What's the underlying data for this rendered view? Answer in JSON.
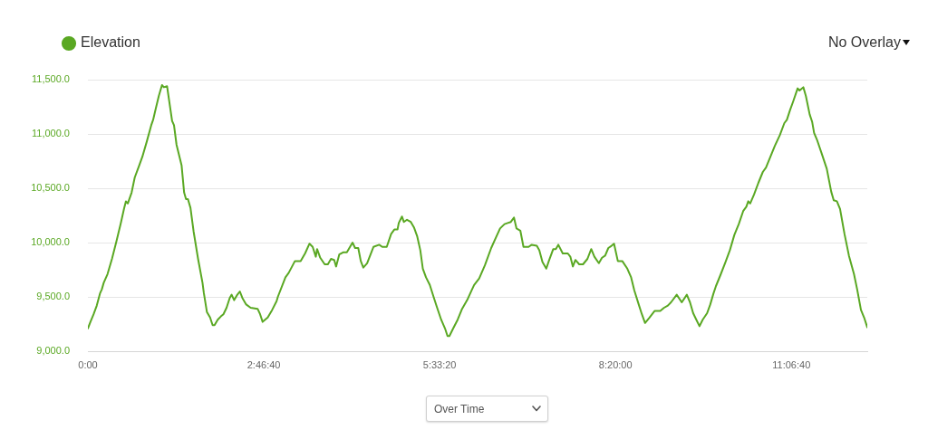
{
  "chart_data": {
    "type": "line",
    "x": [
      0,
      0.04,
      0.09,
      0.14,
      0.19,
      0.22,
      0.25,
      0.31,
      0.38,
      0.45,
      0.52,
      0.57,
      0.6,
      0.63,
      0.69,
      0.74,
      0.81,
      0.86,
      0.93,
      1.0,
      1.03,
      1.07,
      1.12,
      1.17,
      1.2,
      1.25,
      1.28,
      1.33,
      1.36,
      1.4,
      1.48,
      1.52,
      1.55,
      1.58,
      1.62,
      1.67,
      1.74,
      1.81,
      1.83,
      1.88,
      1.93,
      1.97,
      2.0,
      2.05,
      2.1,
      2.14,
      2.19,
      2.24,
      2.27,
      2.31,
      2.36,
      2.4,
      2.44,
      2.5,
      2.57,
      2.68,
      2.72,
      2.76,
      2.84,
      2.91,
      2.98,
      3.0,
      3.12,
      3.17,
      3.27,
      3.36,
      3.43,
      3.5,
      3.55,
      3.6,
      3.62,
      3.67,
      3.74,
      3.79,
      3.84,
      3.89,
      3.92,
      3.97,
      4.03,
      4.09,
      4.14,
      4.18,
      4.22,
      4.27,
      4.31,
      4.35,
      4.41,
      4.51,
      4.6,
      4.65,
      4.72,
      4.79,
      4.84,
      4.89,
      4.91,
      4.96,
      4.99,
      5.04,
      5.1,
      5.15,
      5.2,
      5.25,
      5.29,
      5.34,
      5.4,
      5.46,
      5.51,
      5.58,
      5.64,
      5.68,
      5.71,
      5.77,
      5.84,
      5.91,
      5.99,
      6.06,
      6.1,
      6.18,
      6.27,
      6.37,
      6.44,
      6.51,
      6.58,
      6.63,
      6.68,
      6.73,
      6.77,
      6.83,
      6.88,
      6.96,
      7.01,
      7.09,
      7.13,
      7.18,
      7.24,
      7.28,
      7.35,
      7.39,
      7.43,
      7.5,
      7.58,
      7.62,
      7.66,
      7.7,
      7.76,
      7.82,
      7.89,
      7.95,
      8.0,
      8.07,
      8.12,
      8.17,
      8.22,
      8.27,
      8.31,
      8.37,
      8.44,
      8.52,
      8.58,
      8.63,
      8.7,
      8.75,
      8.8,
      8.87,
      8.95,
      9.04,
      9.1,
      9.16,
      9.21,
      9.3,
      9.38,
      9.46,
      9.51,
      9.56,
      9.61,
      9.66,
      9.71,
      9.78,
      9.83,
      9.88,
      9.92,
      9.99,
      10.07,
      10.14,
      10.21,
      10.28,
      10.35,
      10.4,
      10.43,
      10.46,
      10.52,
      10.59,
      10.66,
      10.71,
      10.78,
      10.85,
      10.93,
      11.0,
      11.04,
      11.09,
      11.14,
      11.21,
      11.24,
      11.3,
      11.34,
      11.4,
      11.44,
      11.47,
      11.52,
      11.59,
      11.67,
      11.74,
      11.78,
      11.83,
      11.88,
      11.95,
      12.02,
      12.1,
      12.15,
      12.21,
      12.26,
      12.31
    ],
    "series": [
      {
        "name": "Elevation",
        "color": "#5aa823",
        "values": [
          9210,
          9270,
          9340,
          9420,
          9530,
          9570,
          9630,
          9710,
          9850,
          10010,
          10180,
          10310,
          10380,
          10360,
          10460,
          10600,
          10710,
          10790,
          10930,
          11080,
          11130,
          11230,
          11350,
          11450,
          11430,
          11440,
          11320,
          11120,
          11080,
          10900,
          10710,
          10460,
          10400,
          10400,
          10320,
          10100,
          9850,
          9630,
          9540,
          9360,
          9310,
          9240,
          9240,
          9290,
          9320,
          9340,
          9400,
          9490,
          9520,
          9470,
          9520,
          9550,
          9490,
          9430,
          9400,
          9390,
          9340,
          9270,
          9310,
          9380,
          9460,
          9500,
          9680,
          9720,
          9830,
          9830,
          9900,
          9990,
          9960,
          9870,
          9940,
          9860,
          9800,
          9800,
          9850,
          9840,
          9780,
          9890,
          9910,
          9910,
          9960,
          10000,
          9950,
          9950,
          9830,
          9770,
          9810,
          9960,
          9980,
          9960,
          9960,
          10080,
          10120,
          10120,
          10180,
          10240,
          10190,
          10210,
          10190,
          10140,
          10060,
          9930,
          9760,
          9680,
          9610,
          9500,
          9410,
          9290,
          9210,
          9140,
          9140,
          9210,
          9290,
          9390,
          9470,
          9560,
          9610,
          9670,
          9790,
          9950,
          10040,
          10130,
          10170,
          10180,
          10190,
          10230,
          10130,
          10110,
          9960,
          9960,
          9980,
          9970,
          9930,
          9820,
          9760,
          9830,
          9940,
          9940,
          9980,
          9900,
          9900,
          9870,
          9780,
          9840,
          9800,
          9800,
          9850,
          9940,
          9870,
          9810,
          9860,
          9880,
          9950,
          9970,
          9990,
          9830,
          9830,
          9760,
          9680,
          9560,
          9430,
          9340,
          9260,
          9310,
          9370,
          9370,
          9400,
          9420,
          9450,
          9520,
          9450,
          9520,
          9450,
          9350,
          9290,
          9230,
          9290,
          9350,
          9430,
          9530,
          9600,
          9700,
          9820,
          9930,
          10070,
          10170,
          10290,
          10330,
          10380,
          10360,
          10440,
          10550,
          10650,
          10690,
          10790,
          10890,
          10990,
          11100,
          11130,
          11220,
          11300,
          11420,
          11400,
          11430,
          11350,
          11180,
          11110,
          11010,
          10940,
          10820,
          10680,
          10470,
          10390,
          10380,
          10310,
          10080,
          9880,
          9710,
          9570,
          9380,
          9310,
          9220
        ]
      }
    ],
    "xlim": [
      0,
      12.31
    ],
    "xticks": [
      {
        "value": 0,
        "label": "0:00"
      },
      {
        "value": 2.777778,
        "label": "2:46:40"
      },
      {
        "value": 5.555556,
        "label": "5:33:20"
      },
      {
        "value": 8.333333,
        "label": "8:20:00"
      },
      {
        "value": 11.111111,
        "label": "11:06:40"
      }
    ],
    "ylim": [
      9000,
      11500
    ],
    "yticks": [
      {
        "value": 9000,
        "label": "9,000.0"
      },
      {
        "value": 9500,
        "label": "9,500.0"
      },
      {
        "value": 10000,
        "label": "10,000.0"
      },
      {
        "value": 10500,
        "label": "10,500.0"
      },
      {
        "value": 11000,
        "label": "11,000.0"
      },
      {
        "value": 11500,
        "label": "11,500.0"
      }
    ],
    "grid": "y",
    "legend": "top left",
    "annotations": [
      "No Overlay",
      "Over Time"
    ]
  }
}
